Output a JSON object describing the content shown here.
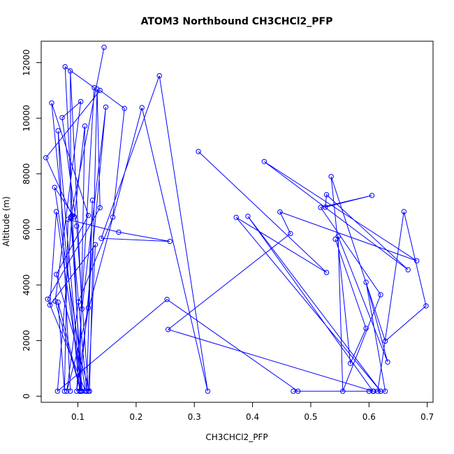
{
  "chart_data": {
    "type": "scatter",
    "title": "ATOM3 Northbound CH3CHCl2_PFP",
    "xlabel": "CH3CHCl2_PFP",
    "ylabel": "Altitude (m)",
    "xlim": [
      0.037,
      0.71
    ],
    "ylim": [
      -220,
      12770
    ],
    "x_ticks": [
      0.1,
      0.2,
      0.3,
      0.4,
      0.5,
      0.6,
      0.7
    ],
    "x_tick_labels": [
      "0.1",
      "0.2",
      "0.3",
      "0.4",
      "0.5",
      "0.6",
      "0.7"
    ],
    "y_ticks": [
      0,
      2000,
      4000,
      6000,
      8000,
      10000,
      12000
    ],
    "y_tick_labels": [
      "0",
      "2000",
      "4000",
      "6000",
      "8000",
      "10000",
      "12000"
    ],
    "grid": false,
    "legend": "none",
    "line_color": "#0000ff",
    "marker": "open-circle",
    "series": [
      {
        "x": [
          0.145,
          0.088,
          0.115,
          0.125,
          0.118,
          0.098,
          0.128,
          0.078,
          0.105,
          0.061,
          0.105,
          0.073,
          0.098,
          0.118,
          0.13,
          0.052,
          0.063,
          0.107,
          0.088,
          0.087,
          0.107,
          0.148,
          0.103,
          0.112,
          0.094,
          0.06,
          0.113,
          0.048,
          0.138,
          0.133,
          0.12,
          0.063,
          0.118,
          0.055,
          0.103
        ],
        "y": [
          12550,
          6450,
          180,
          7050,
          3180,
          180,
          11100,
          11850,
          180,
          3420,
          10600,
          10020,
          6120,
          180,
          5450,
          3280,
          6640,
          180,
          6400,
          11700,
          3140,
          10400,
          180,
          9720,
          6450,
          7510,
          180,
          3490,
          6780,
          11050,
          180,
          4380,
          6500,
          10550,
          180
        ]
      },
      {
        "x": [
          0.087,
          0.066,
          0.105,
          0.066,
          0.077,
          0.083,
          0.17,
          0.258,
          0.14,
          0.24,
          0.323,
          0.21,
          0.081,
          0.101,
          0.16,
          0.18,
          0.138,
          0.045,
          0.09,
          0.065,
          0.253,
          0.478
        ],
        "y": [
          180,
          9550,
          180,
          3380,
          180,
          6360,
          5900,
          5570,
          5680,
          11530,
          180,
          10380,
          180,
          3390,
          6440,
          10350,
          11000,
          8580,
          6500,
          180,
          3480,
          180
        ]
      },
      {
        "x": [
          0.307,
          0.527,
          0.372,
          0.62,
          0.392,
          0.607,
          0.47,
          0.607,
          0.255,
          0.465,
          0.447,
          0.682,
          0.42,
          0.667,
          0.527,
          0.525,
          0.605,
          0.517,
          0.62,
          0.555,
          0.547,
          0.632,
          0.595,
          0.628,
          0.6,
          0.62,
          0.608,
          0.615,
          0.66,
          0.698,
          0.628,
          0.535,
          0.568,
          0.595,
          0.542
        ],
        "y": [
          8800,
          4450,
          6430,
          180,
          6470,
          180,
          180,
          180,
          2400,
          5850,
          6630,
          4870,
          8440,
          4550,
          7250,
          6800,
          7220,
          6790,
          3650,
          180,
          5750,
          1230,
          4100,
          180,
          180,
          180,
          180,
          180,
          6640,
          3250,
          1980,
          7900,
          1180,
          2440,
          5650
        ]
      }
    ]
  }
}
